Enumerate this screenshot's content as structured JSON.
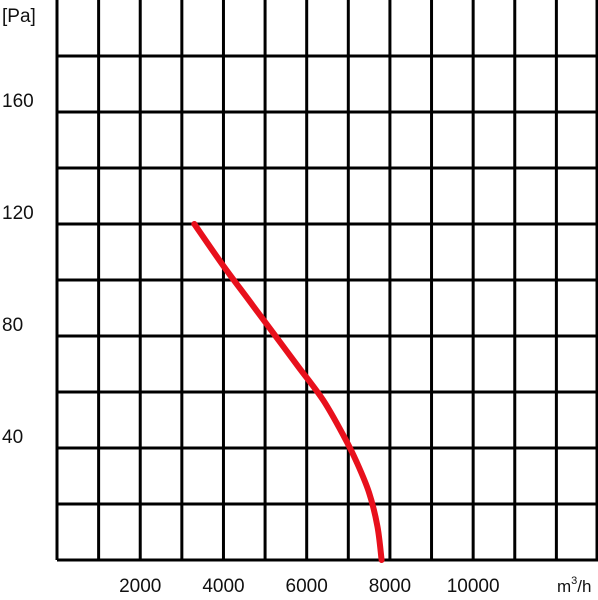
{
  "chart_data": {
    "type": "line",
    "ylabel": "[Pa]",
    "xlabel_base": "m",
    "xlabel_exponent": "3",
    "xlabel_suffix": "/h",
    "xlim": [
      0,
      13000
    ],
    "ylim": [
      0,
      200
    ],
    "x_ticks": [
      2000,
      4000,
      6000,
      8000,
      10000
    ],
    "x_tick_labels": [
      "2000",
      "4000",
      "6000",
      "8000",
      "10000"
    ],
    "y_ticks": [
      40,
      80,
      120,
      160
    ],
    "y_tick_labels": [
      "40",
      "80",
      "120",
      "160"
    ],
    "grid": true,
    "colors": {
      "curve": "#e8101c",
      "grid": "#000000"
    },
    "series": [
      {
        "x": [
          3300,
          4000,
          4600,
          5200,
          5800,
          6400,
          6900,
          7200,
          7500,
          7700,
          7800
        ],
        "y": [
          120,
          105,
          93,
          81,
          69,
          57,
          44,
          35,
          24,
          12,
          0
        ]
      }
    ]
  }
}
